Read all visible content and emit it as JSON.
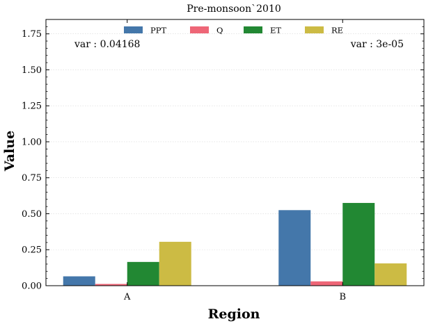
{
  "chart_data": {
    "type": "bar",
    "title": "Pre-monsoon`2010",
    "xlabel": "Region",
    "ylabel": "Value",
    "categories": [
      "A",
      "B"
    ],
    "series": [
      {
        "name": "PPT",
        "values": [
          0.065,
          0.525
        ]
      },
      {
        "name": "Q",
        "values": [
          0.012,
          0.03
        ]
      },
      {
        "name": "ET",
        "values": [
          0.165,
          0.575
        ]
      },
      {
        "name": "RE",
        "values": [
          0.305,
          0.155
        ]
      }
    ],
    "ylim": [
      0,
      1.85
    ],
    "yticks": [
      "0.00",
      "0.25",
      "0.50",
      "0.75",
      "1.00",
      "1.25",
      "1.50",
      "1.75"
    ],
    "annotations": [
      "var : 0.04168",
      "var : 3e-05"
    ],
    "legend_position": "top-center",
    "grid": true
  },
  "colors": {
    "PPT": "#4477aa",
    "Q": "#ee6677",
    "ET": "#228833",
    "RE": "#ccbb44"
  }
}
